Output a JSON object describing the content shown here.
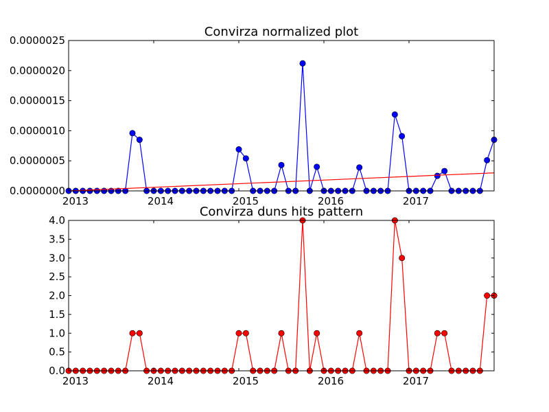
{
  "chart_data": [
    {
      "type": "line",
      "title": "Convirza normalized plot",
      "xlabel": "",
      "ylabel": "",
      "x": [
        "2013-01",
        "2013-02",
        "2013-03",
        "2013-04",
        "2013-05",
        "2013-06",
        "2013-07",
        "2013-08",
        "2013-09",
        "2013-10",
        "2013-11",
        "2013-12",
        "2014-01",
        "2014-02",
        "2014-03",
        "2014-04",
        "2014-05",
        "2014-06",
        "2014-07",
        "2014-08",
        "2014-09",
        "2014-10",
        "2014-11",
        "2014-12",
        "2015-01",
        "2015-02",
        "2015-03",
        "2015-04",
        "2015-05",
        "2015-06",
        "2015-07",
        "2015-08",
        "2015-09",
        "2015-10",
        "2015-11",
        "2015-12",
        "2016-01",
        "2016-02",
        "2016-03",
        "2016-04",
        "2016-05",
        "2016-06",
        "2016-07",
        "2016-08",
        "2016-09",
        "2016-10",
        "2016-11",
        "2016-12",
        "2017-01",
        "2017-02",
        "2017-03",
        "2017-04",
        "2017-05",
        "2017-06",
        "2017-07",
        "2017-08",
        "2017-09",
        "2017-10",
        "2017-11",
        "2017-12",
        "2018-01"
      ],
      "xticks": [
        "2013",
        "2014",
        "2015",
        "2016",
        "2017"
      ],
      "xtick_values": [
        "2013-01",
        "2014-01",
        "2015-01",
        "2016-01",
        "2017-01"
      ],
      "yticks": [
        "0.0000000",
        "0.0000005",
        "0.0000010",
        "0.0000015",
        "0.0000020",
        "0.0000025"
      ],
      "ytick_values": [
        0,
        5e-07,
        1e-06,
        1.5e-06,
        2e-06,
        2.5e-06
      ],
      "ylim": [
        0,
        2.5e-06
      ],
      "grid": false,
      "series": [
        {
          "kind": "line-markers",
          "color": "#0000ff",
          "values": [
            0,
            0,
            0,
            0,
            0,
            0,
            0,
            0,
            0,
            9.6e-07,
            8.5e-07,
            0,
            0,
            0,
            0,
            0,
            0,
            0,
            0,
            0,
            0,
            0,
            0,
            0,
            6.9e-07,
            5.4e-07,
            0,
            0,
            0,
            0,
            4.3e-07,
            0,
            0,
            2.12e-06,
            0,
            4e-07,
            0,
            0,
            0,
            0,
            0,
            3.9e-07,
            0,
            0,
            0,
            0,
            1.27e-06,
            9.1e-07,
            0,
            0,
            0,
            0,
            2.5e-07,
            3.3e-07,
            0,
            0,
            0,
            0,
            0,
            5.1e-07,
            8.5e-07
          ]
        },
        {
          "kind": "trend-line",
          "color": "#ff0000",
          "x": [
            "2013-01",
            "2018-01"
          ],
          "values": [
            0,
            3e-07
          ]
        }
      ]
    },
    {
      "type": "line",
      "title": "Convirza duns hits pattern",
      "xlabel": "",
      "ylabel": "",
      "x": [
        "2013-01",
        "2013-02",
        "2013-03",
        "2013-04",
        "2013-05",
        "2013-06",
        "2013-07",
        "2013-08",
        "2013-09",
        "2013-10",
        "2013-11",
        "2013-12",
        "2014-01",
        "2014-02",
        "2014-03",
        "2014-04",
        "2014-05",
        "2014-06",
        "2014-07",
        "2014-08",
        "2014-09",
        "2014-10",
        "2014-11",
        "2014-12",
        "2015-01",
        "2015-02",
        "2015-03",
        "2015-04",
        "2015-05",
        "2015-06",
        "2015-07",
        "2015-08",
        "2015-09",
        "2015-10",
        "2015-11",
        "2015-12",
        "2016-01",
        "2016-02",
        "2016-03",
        "2016-04",
        "2016-05",
        "2016-06",
        "2016-07",
        "2016-08",
        "2016-09",
        "2016-10",
        "2016-11",
        "2016-12",
        "2017-01",
        "2017-02",
        "2017-03",
        "2017-04",
        "2017-05",
        "2017-06",
        "2017-07",
        "2017-08",
        "2017-09",
        "2017-10",
        "2017-11",
        "2017-12",
        "2018-01"
      ],
      "xticks": [
        "2013",
        "2014",
        "2015",
        "2016",
        "2017"
      ],
      "xtick_values": [
        "2013-01",
        "2014-01",
        "2015-01",
        "2016-01",
        "2017-01"
      ],
      "yticks": [
        "0.0",
        "0.5",
        "1.0",
        "1.5",
        "2.0",
        "2.5",
        "3.0",
        "3.5",
        "4.0"
      ],
      "ytick_values": [
        0,
        0.5,
        1,
        1.5,
        2,
        2.5,
        3,
        3.5,
        4
      ],
      "ylim": [
        0,
        4
      ],
      "grid": false,
      "series": [
        {
          "kind": "line-markers",
          "color": "#ff0000",
          "values": [
            0,
            0,
            0,
            0,
            0,
            0,
            0,
            0,
            0,
            1,
            1,
            0,
            0,
            0,
            0,
            0,
            0,
            0,
            0,
            0,
            0,
            0,
            0,
            0,
            1,
            1,
            0,
            0,
            0,
            0,
            1,
            0,
            0,
            4,
            0,
            1,
            0,
            0,
            0,
            0,
            0,
            1,
            0,
            0,
            0,
            0,
            4,
            3,
            0,
            0,
            0,
            0,
            1,
            1,
            0,
            0,
            0,
            0,
            0,
            2,
            2
          ]
        }
      ]
    }
  ]
}
